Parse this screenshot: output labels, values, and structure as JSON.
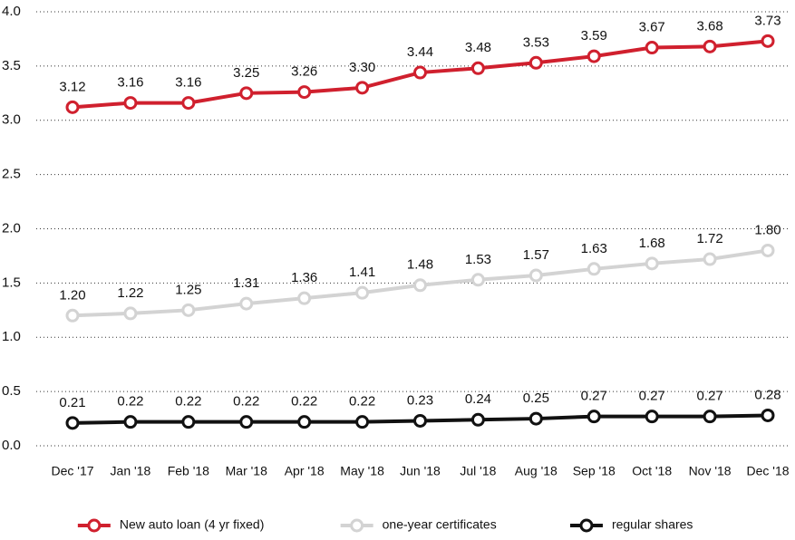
{
  "chart_data": {
    "type": "line",
    "categories": [
      "Dec '17",
      "Jan '18",
      "Feb '18",
      "Mar '18",
      "Apr '18",
      "May '18",
      "Jun '18",
      "Jul '18",
      "Aug '18",
      "Sep '18",
      "Oct '18",
      "Nov '18",
      "Dec '18"
    ],
    "series": [
      {
        "name": "New auto loan (4 yr fixed)",
        "color": "#d0202e",
        "values": [
          3.12,
          3.16,
          3.16,
          3.25,
          3.26,
          3.3,
          3.44,
          3.48,
          3.53,
          3.59,
          3.67,
          3.68,
          3.73
        ],
        "value_labels": [
          "3.12",
          "3.16",
          "3.16",
          "3.25",
          "3.26",
          "3.30",
          "3.44",
          "3.48",
          "3.53",
          "3.59",
          "3.67",
          "3.68",
          "3.73"
        ]
      },
      {
        "name": "one-year certificates",
        "color": "#d3d3d3",
        "values": [
          1.2,
          1.22,
          1.25,
          1.31,
          1.36,
          1.41,
          1.48,
          1.53,
          1.57,
          1.63,
          1.68,
          1.72,
          1.8
        ],
        "value_labels": [
          "1.20",
          "1.22",
          "1.25",
          "1.31",
          "1.36",
          "1.41",
          "1.48",
          "1.53",
          "1.57",
          "1.63",
          "1.68",
          "1.72",
          "1.80"
        ]
      },
      {
        "name": "regular shares",
        "color": "#111111",
        "values": [
          0.21,
          0.22,
          0.22,
          0.22,
          0.22,
          0.22,
          0.23,
          0.24,
          0.25,
          0.27,
          0.27,
          0.27,
          0.28
        ],
        "value_labels": [
          "0.21",
          "0.22",
          "0.22",
          "0.22",
          "0.22",
          "0.22",
          "0.23",
          "0.24",
          "0.25",
          "0.27",
          "0.27",
          "0.27",
          "0.28"
        ]
      }
    ],
    "ylim": [
      0,
      4
    ],
    "yticks": [
      {
        "value": 0,
        "label": "0.0"
      },
      0.5,
      {
        "value": 1,
        "label": "1.0"
      },
      1.5,
      {
        "value": 2,
        "label": "2.0"
      },
      2.5,
      {
        "value": 3,
        "label": "3.0"
      },
      3.5,
      {
        "value": 4,
        "label": "4.0"
      }
    ],
    "grid": true,
    "legend": "bottom"
  }
}
